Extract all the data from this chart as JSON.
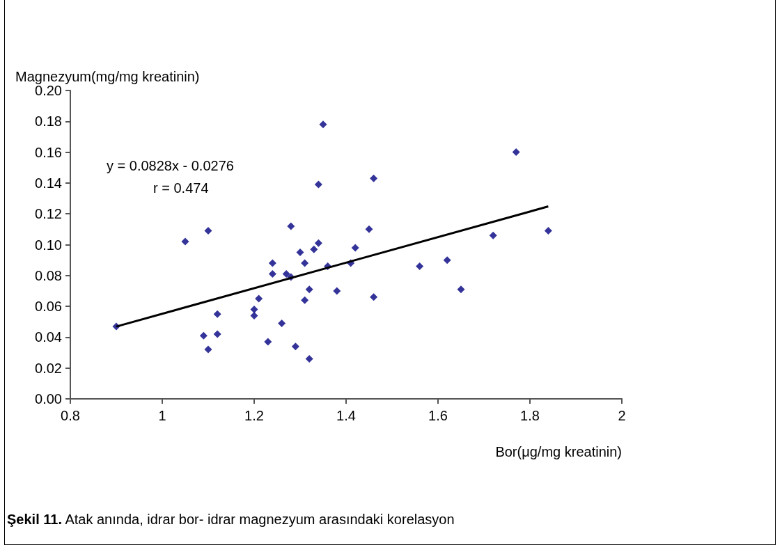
{
  "chart_data": {
    "type": "scatter",
    "ylabel": "Magnezyum(mg/mg kreatinin)",
    "xlabel": "Bor(μg/mg kreatinin)",
    "annotations": [
      "y = 0.0828x - 0.0276",
      "r = 0.474",
      "Şekil 11. Atak anında, idrar bor- idrar magnezyum arasındaki korelasyon"
    ],
    "xlim": [
      0.8,
      2
    ],
    "xticks": [
      0.8,
      1,
      1.2,
      1.4,
      1.6,
      1.8,
      2
    ],
    "ylim": [
      0,
      0.2
    ],
    "yticks": [
      {
        "value": 0,
        "label": "0.00"
      },
      {
        "value": 0.02,
        "label": "0.02"
      },
      {
        "value": 0.04,
        "label": "0.04"
      },
      {
        "value": 0.06,
        "label": "0.06"
      },
      {
        "value": 0.08,
        "label": "0.08"
      },
      {
        "value": 0.1,
        "label": "0.10"
      },
      {
        "value": 0.12,
        "label": "0.12"
      },
      {
        "value": 0.14,
        "label": "0.14"
      },
      {
        "value": 0.16,
        "label": "0.16"
      },
      {
        "value": 0.18,
        "label": "0.18"
      },
      {
        "value": 0.2,
        "label": "0.20"
      }
    ],
    "grid": false,
    "marker": "diamond",
    "series": [
      {
        "color": "#000080",
        "x": [
          0.9,
          1.05,
          1.1,
          1.09,
          1.1,
          1.12,
          1.12,
          1.2,
          1.2,
          1.21,
          1.23,
          1.24,
          1.24,
          1.26,
          1.27,
          1.28,
          1.28,
          1.29,
          1.3,
          1.31,
          1.31,
          1.32,
          1.32,
          1.33,
          1.34,
          1.34,
          1.35,
          1.36,
          1.38,
          1.41,
          1.42,
          1.45,
          1.46,
          1.46,
          1.56,
          1.62,
          1.65,
          1.72,
          1.77,
          1.84
        ],
        "values": [
          0.047,
          0.102,
          0.109,
          0.041,
          0.032,
          0.055,
          0.042,
          0.058,
          0.054,
          0.065,
          0.037,
          0.088,
          0.081,
          0.049,
          0.081,
          0.079,
          0.112,
          0.034,
          0.095,
          0.088,
          0.064,
          0.071,
          0.026,
          0.097,
          0.101,
          0.139,
          0.178,
          0.086,
          0.07,
          0.088,
          0.098,
          0.11,
          0.143,
          0.066,
          0.086,
          0.09,
          0.071,
          0.106,
          0.16,
          0.109
        ]
      },
      {
        "type": "line",
        "color": "#000000",
        "marker": "none",
        "line_style": "solid",
        "x": [
          0.9,
          1.84
        ],
        "values": [
          0.0469,
          0.1248
        ]
      }
    ]
  }
}
